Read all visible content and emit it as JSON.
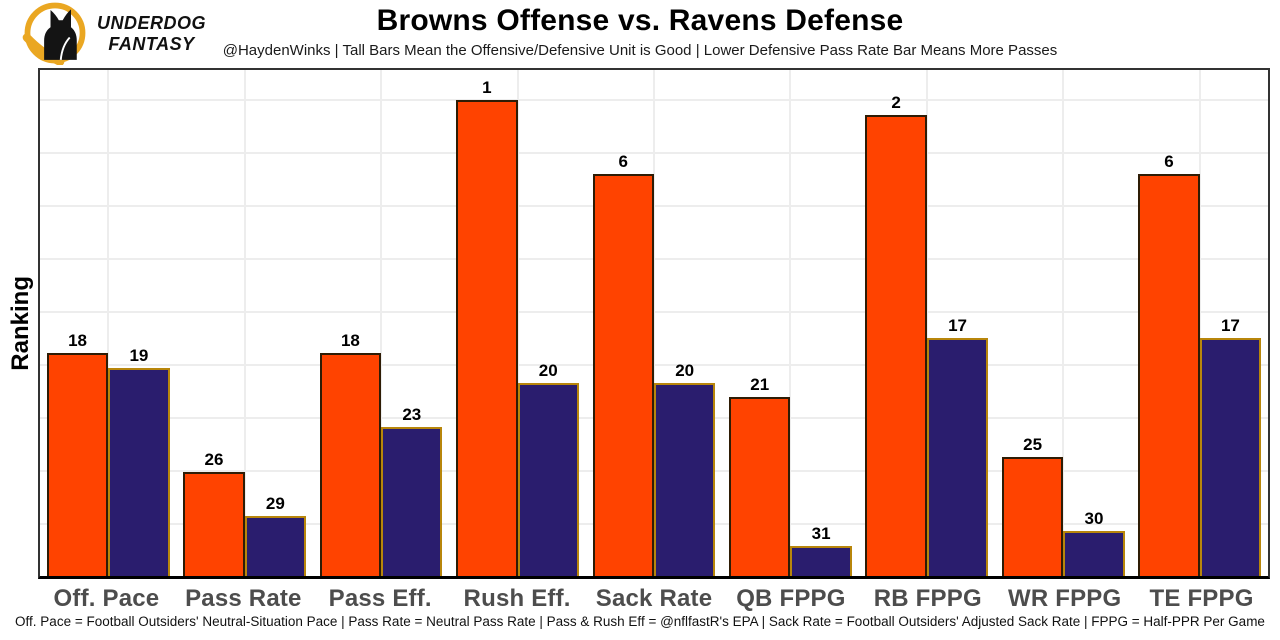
{
  "brand": {
    "line1": "UNDERDOG",
    "line2": "FANTASY",
    "gold": "#EAA722",
    "dog_black": "#141414"
  },
  "header": {
    "title": "Browns Offense vs. Ravens Defense",
    "subtitle": "@HaydenWinks | Tall Bars Mean the Offensive/Defensive Unit is Good | Lower Defensive Pass Rate Bar Means More Passes"
  },
  "chart_data": {
    "type": "bar",
    "title": "Browns Offense vs. Ravens Defense",
    "xlabel": "",
    "ylabel": "Ranking",
    "categories": [
      "Off. Pace",
      "Pass Rate",
      "Pass Eff.",
      "Rush Eff.",
      "Sack Rate",
      "QB FPPG",
      "RB FPPG",
      "WR FPPG",
      "TE FPPG"
    ],
    "series": [
      {
        "name": "Browns Offense",
        "color": "#ff4300",
        "border_color": "#2e1c05",
        "ranks": [
          18,
          26,
          18,
          1,
          6,
          21,
          2,
          25,
          6
        ]
      },
      {
        "name": "Ravens Defense",
        "color": "#2a1d6e",
        "border_color": "#b8860b",
        "ranks": [
          19,
          29,
          23,
          20,
          20,
          31,
          17,
          30,
          17
        ]
      }
    ],
    "value_rule": "bar height value = 33 - rank (rank 1 = tallest bar)",
    "ylim": [
      0,
      34
    ],
    "grid": true,
    "legend_position": "none",
    "gridline_color": "#ededed"
  },
  "footer": {
    "text": "Off. Pace = Football Outsiders' Neutral-Situation Pace | Pass Rate = Neutral Pass Rate | Pass & Rush Eff = @nflfastR's EPA | Sack Rate = Football Outsiders' Adjusted Sack Rate | FPPG = Half-PPR Per Game"
  }
}
